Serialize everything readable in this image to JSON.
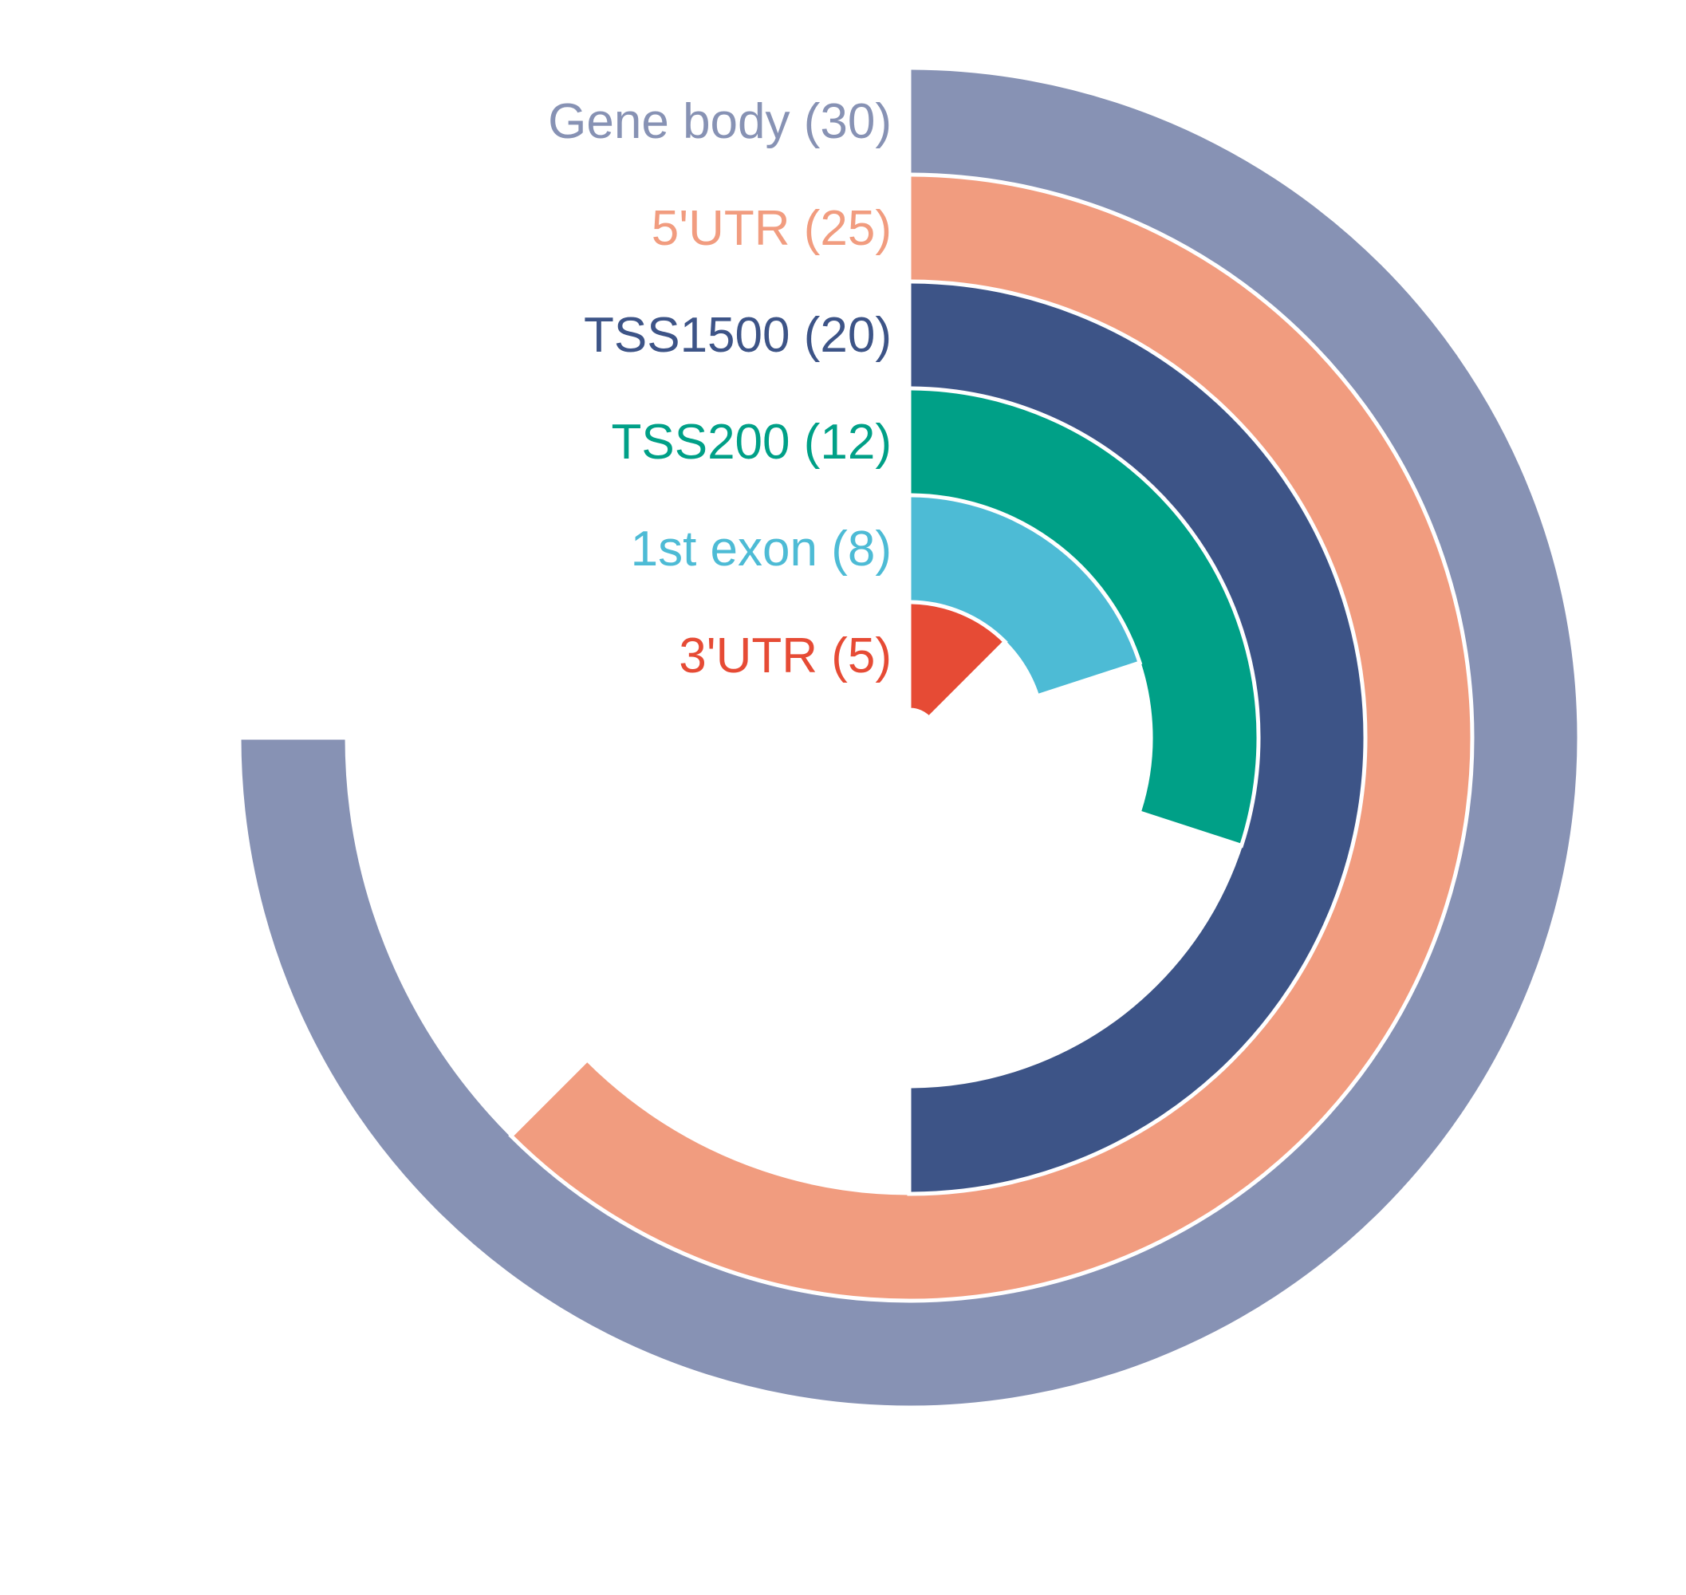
{
  "chart_data": {
    "type": "radial-bar",
    "max_value": 40,
    "direction": "clockwise",
    "start_position": "top",
    "series": [
      {
        "category": "Gene body",
        "value": 30,
        "label": "Gene body (30)",
        "color": "#8792B4"
      },
      {
        "category": "5'UTR",
        "value": 25,
        "label": "5'UTR (25)",
        "color": "#F19C7F"
      },
      {
        "category": "TSS1500",
        "value": 20,
        "label": "TSS1500 (20)",
        "color": "#3D5487"
      },
      {
        "category": "TSS200",
        "value": 12,
        "label": "TSS200 (12)",
        "color": "#00A087"
      },
      {
        "category": "1st exon",
        "value": 8,
        "label": "1st exon (8)",
        "color": "#4DBBD5"
      },
      {
        "category": "3'UTR",
        "value": 5,
        "label": "3'UTR (5)",
        "color": "#E64B35"
      }
    ]
  }
}
